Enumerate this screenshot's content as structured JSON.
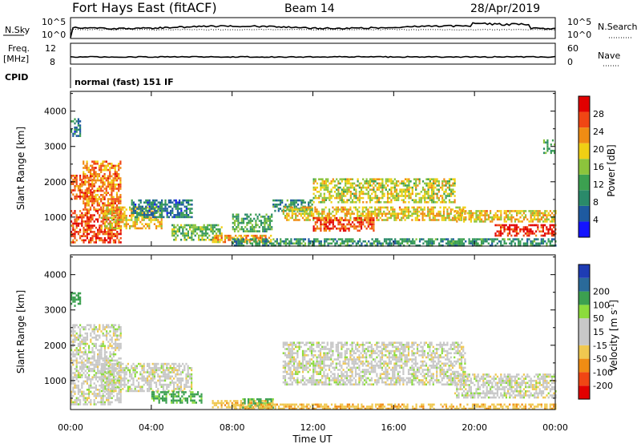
{
  "header": {
    "station": "Fort Hays East (fitACF)",
    "beam": "Beam 14",
    "date": "28/Apr/2019"
  },
  "top_panels": {
    "nsky_label": "N.Sky",
    "nsearch_label": "N.Search",
    "freq_label": "Freq.",
    "freq_unit": "[MHz]",
    "nave_label": "Nave",
    "cpid_label": "CPID",
    "nsky_ticks": [
      "10^5",
      "10^0"
    ],
    "nsearch_ticks": [
      "10^5",
      "10^0"
    ],
    "freq_ticks": [
      "12",
      "8"
    ],
    "nave_ticks": [
      "60",
      "0"
    ],
    "cpid_text": "normal (fast) 151 IF"
  },
  "colors": {
    "power_scale": [
      "#1414ff",
      "#1e5aa0",
      "#2a8a6a",
      "#3ca050",
      "#8cc43c",
      "#f0d014",
      "#f08c14",
      "#f04614",
      "#e10000"
    ],
    "velocity_scale": [
      "#e10000",
      "#f04614",
      "#f08c14",
      "#f0c850",
      "#c8c8c8",
      "#c8c8c8",
      "#8cdc3c",
      "#3ca050",
      "#2a6a9a",
      "#1e3cb4"
    ]
  },
  "chart_data": [
    {
      "type": "heatmap",
      "title": "",
      "xlabel": "Time UT",
      "ylabel": "Slant Range [km]",
      "x_ticks": [
        "00:00",
        "04:00",
        "08:00",
        "12:00",
        "16:00",
        "20:00",
        "00:00"
      ],
      "y_ticks": [
        1000,
        2000,
        3000,
        4000
      ],
      "ylim": [
        180,
        4560
      ],
      "colorbar_label": "Power [dB]",
      "colorbar_ticks": [
        4,
        8,
        12,
        16,
        20,
        24,
        28
      ],
      "colorbar_range": [
        0,
        32
      ],
      "regions": [
        {
          "t0": 0.0,
          "t1": 0.5,
          "r0": 3300,
          "r1": 3800,
          "v": 8
        },
        {
          "t0": 0.0,
          "t1": 1.2,
          "r0": 1500,
          "r1": 2200,
          "v": 26
        },
        {
          "t0": 0.6,
          "t1": 2.5,
          "r0": 1200,
          "r1": 2600,
          "v": 24
        },
        {
          "t0": 0.0,
          "t1": 2.5,
          "r0": 300,
          "r1": 1200,
          "v": 27
        },
        {
          "t0": 1.5,
          "t1": 4.5,
          "r0": 700,
          "r1": 1300,
          "v": 20
        },
        {
          "t0": 3.0,
          "t1": 6.0,
          "r0": 1000,
          "r1": 1500,
          "v": 8
        },
        {
          "t0": 5.0,
          "t1": 7.5,
          "r0": 350,
          "r1": 800,
          "v": 14
        },
        {
          "t0": 7.0,
          "t1": 10.0,
          "r0": 300,
          "r1": 500,
          "v": 22
        },
        {
          "t0": 8.0,
          "t1": 10.0,
          "r0": 600,
          "r1": 1100,
          "v": 12
        },
        {
          "t0": 10.0,
          "t1": 12.0,
          "r0": 1200,
          "r1": 1500,
          "v": 10
        },
        {
          "t0": 10.5,
          "t1": 19.5,
          "r0": 900,
          "r1": 1300,
          "v": 20
        },
        {
          "t0": 12.0,
          "t1": 15.0,
          "r0": 600,
          "r1": 1000,
          "v": 27
        },
        {
          "t0": 12.0,
          "t1": 19.0,
          "r0": 1400,
          "r1": 2100,
          "v": 18
        },
        {
          "t0": 19.0,
          "t1": 24.0,
          "r0": 900,
          "r1": 1200,
          "v": 20
        },
        {
          "t0": 21.0,
          "t1": 24.0,
          "r0": 450,
          "r1": 800,
          "v": 29
        },
        {
          "t0": 23.4,
          "t1": 24.0,
          "r0": 2800,
          "r1": 3200,
          "v": 12
        },
        {
          "t0": 8.0,
          "t1": 24.0,
          "r0": 200,
          "r1": 400,
          "v": 10
        }
      ]
    },
    {
      "type": "heatmap",
      "title": "",
      "xlabel": "Time UT",
      "ylabel": "Slant Range [km]",
      "x_ticks": [
        "00:00",
        "04:00",
        "08:00",
        "12:00",
        "16:00",
        "20:00",
        "00:00"
      ],
      "y_ticks": [
        1000,
        2000,
        3000,
        4000
      ],
      "ylim": [
        180,
        4560
      ],
      "colorbar_label": "Velocity [m s^-1]",
      "colorbar_ticks": [
        -200,
        -100,
        -50,
        -15,
        15,
        50,
        100,
        200
      ],
      "regions": [
        {
          "t0": 0.0,
          "t1": 0.5,
          "r0": 3100,
          "r1": 3500,
          "v": 80
        },
        {
          "t0": 0.0,
          "t1": 2.5,
          "r0": 300,
          "r1": 2600,
          "v": 0
        },
        {
          "t0": 1.5,
          "t1": 6.0,
          "r0": 700,
          "r1": 1500,
          "v": 0
        },
        {
          "t0": 4.0,
          "t1": 6.5,
          "r0": 400,
          "r1": 700,
          "v": 60
        },
        {
          "t0": 7.0,
          "t1": 10.0,
          "r0": 250,
          "r1": 450,
          "v": -40
        },
        {
          "t0": 8.5,
          "t1": 10.0,
          "r0": 250,
          "r1": 500,
          "v": 60
        },
        {
          "t0": 10.5,
          "t1": 19.5,
          "r0": 900,
          "r1": 2100,
          "v": 0
        },
        {
          "t0": 19.0,
          "t1": 24.0,
          "r0": 500,
          "r1": 1200,
          "v": 0
        },
        {
          "t0": 8.0,
          "t1": 24.0,
          "r0": 200,
          "r1": 350,
          "v": -40
        }
      ]
    }
  ]
}
